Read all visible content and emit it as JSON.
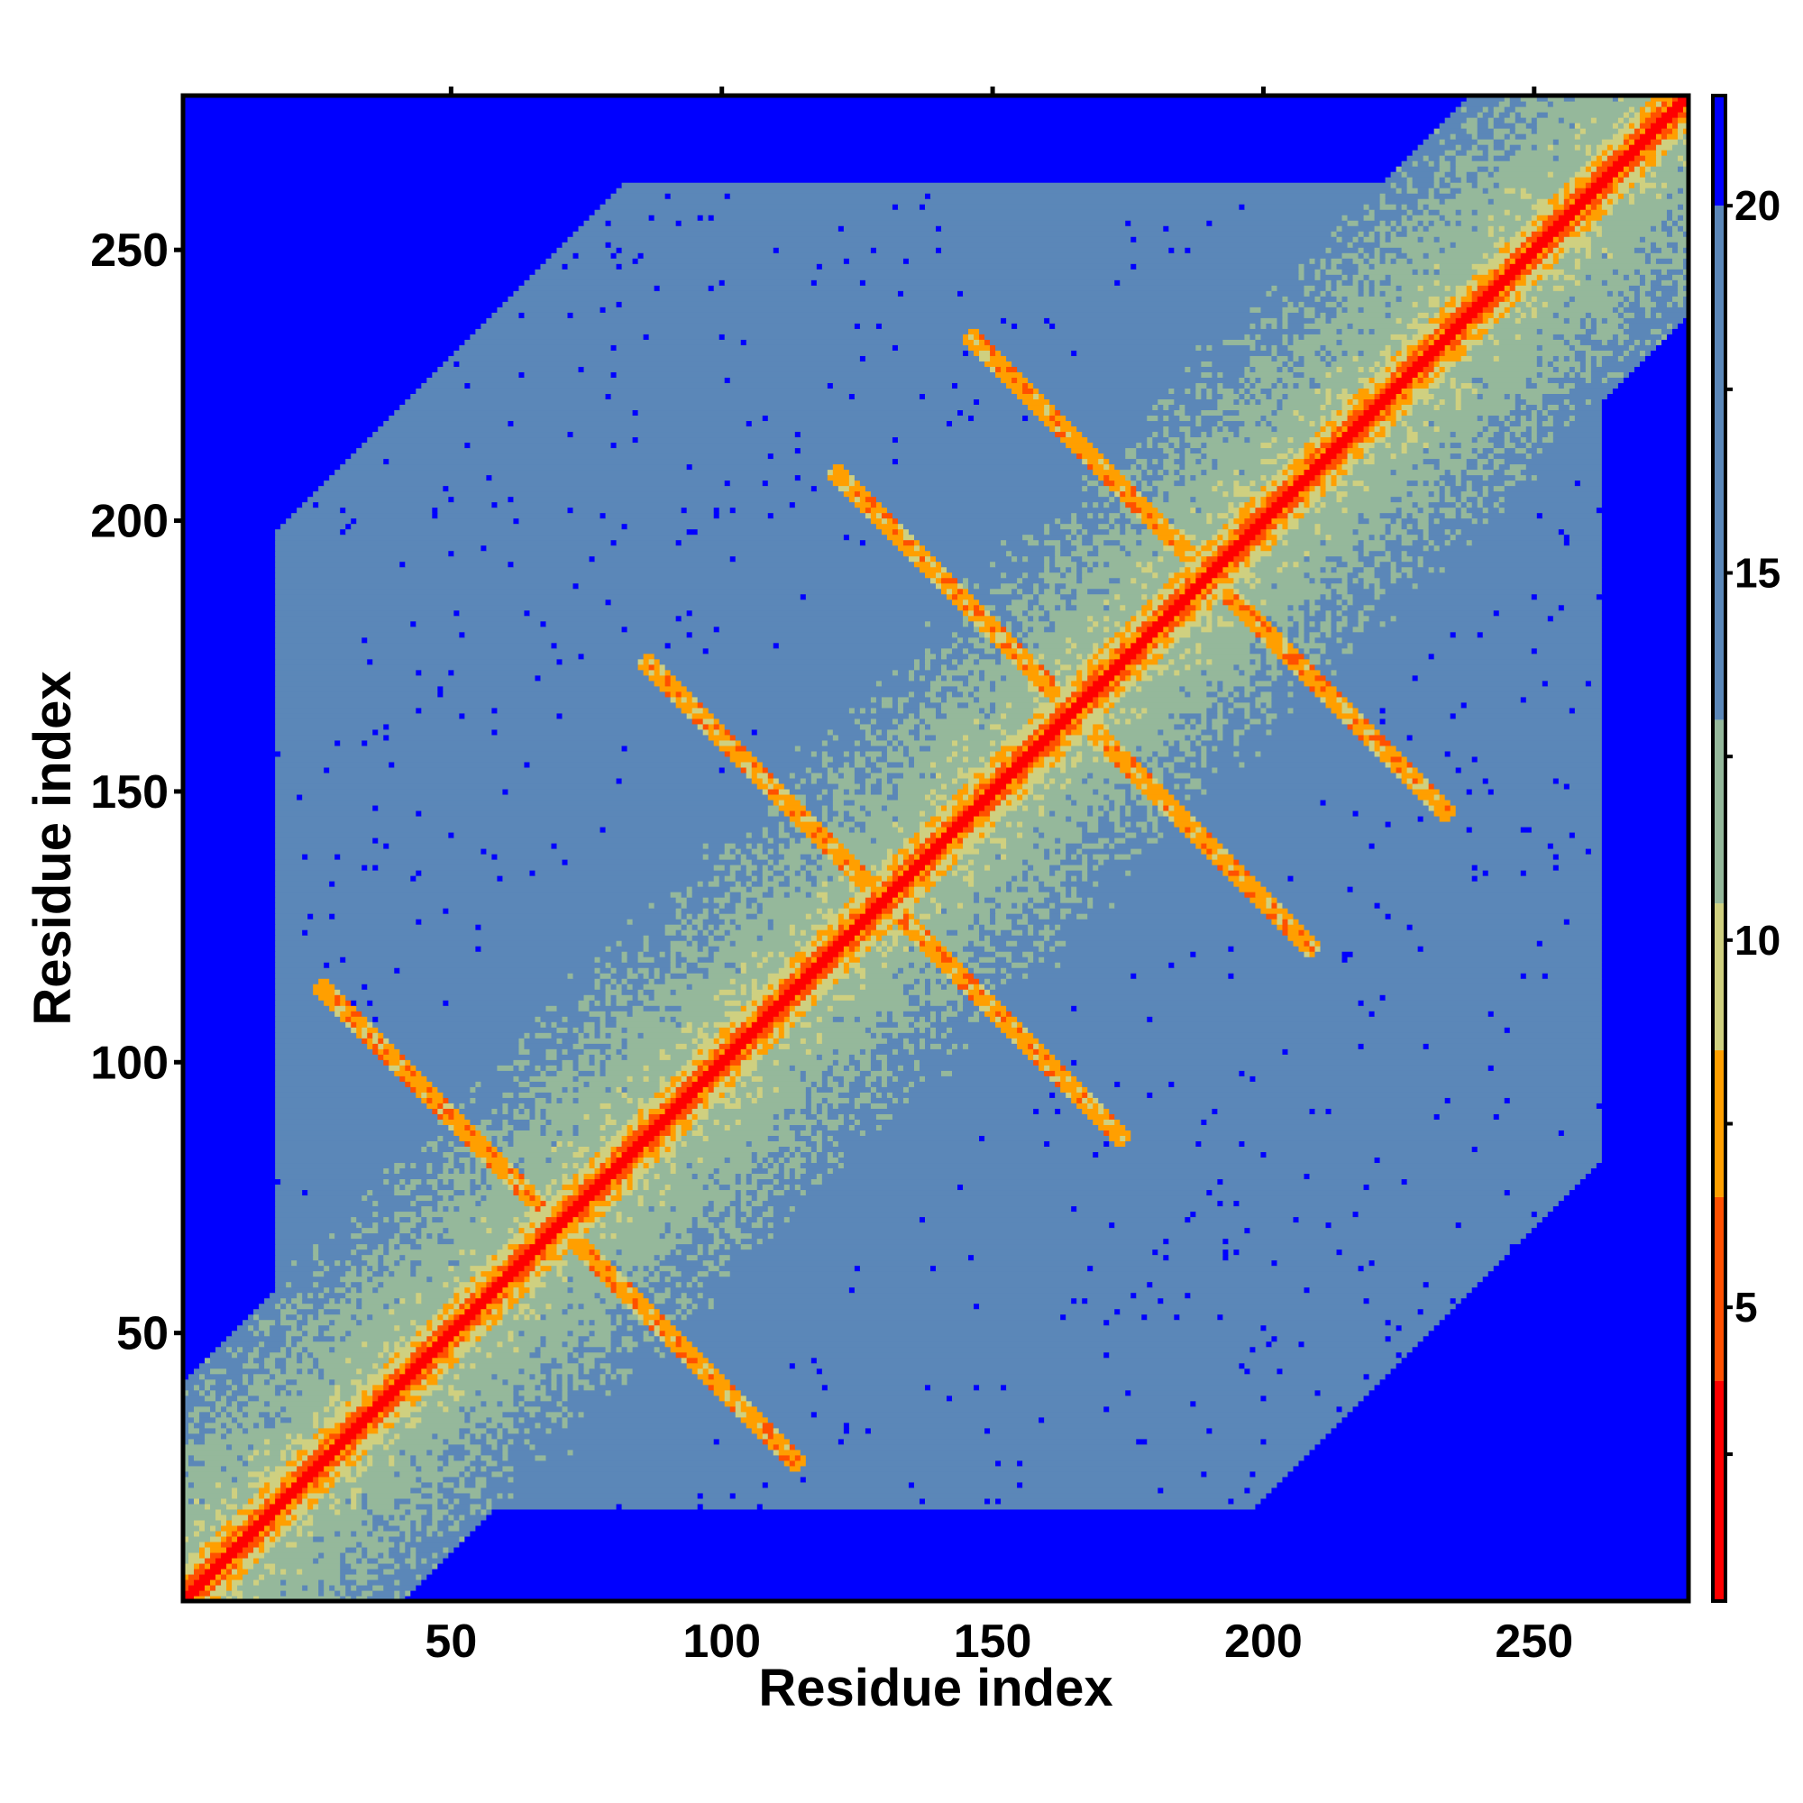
{
  "chart_data": {
    "type": "heatmap",
    "title": "",
    "xlabel": "Residue index",
    "ylabel": "Residue index",
    "n_residues": 278,
    "xlim": [
      1,
      278
    ],
    "ylim": [
      1,
      278
    ],
    "x_ticks": [
      50,
      100,
      150,
      200,
      250
    ],
    "y_ticks": [
      50,
      100,
      150,
      200,
      250
    ],
    "x_tick_labels": [
      "50",
      "100",
      "150",
      "200",
      "250"
    ],
    "y_tick_labels": [
      "50",
      "100",
      "150",
      "200",
      "250"
    ],
    "colorbar": {
      "range": [
        1,
        21.5
      ],
      "ticks": [
        5,
        10,
        15,
        20
      ],
      "tick_labels": [
        "5",
        "10",
        "15",
        "20"
      ],
      "colors": [
        {
          "from": 1,
          "to": 4,
          "color": "#ff0000"
        },
        {
          "from": 4,
          "to": 6.5,
          "color": "#ff5000"
        },
        {
          "from": 6.5,
          "to": 8.5,
          "color": "#ff9f00"
        },
        {
          "from": 8.5,
          "to": 10.5,
          "color": "#cfd080"
        },
        {
          "from": 10.5,
          "to": 13,
          "color": "#95b89b"
        },
        {
          "from": 13,
          "to": 20,
          "color": "#5b87b8"
        },
        {
          "from": 20,
          "to": 21.5,
          "color": "#0000ff"
        }
      ]
    },
    "grid": false,
    "description_values": {
      "diagonal_distance": 3.8,
      "background_distance": 21,
      "interior_distance": 16
    }
  }
}
